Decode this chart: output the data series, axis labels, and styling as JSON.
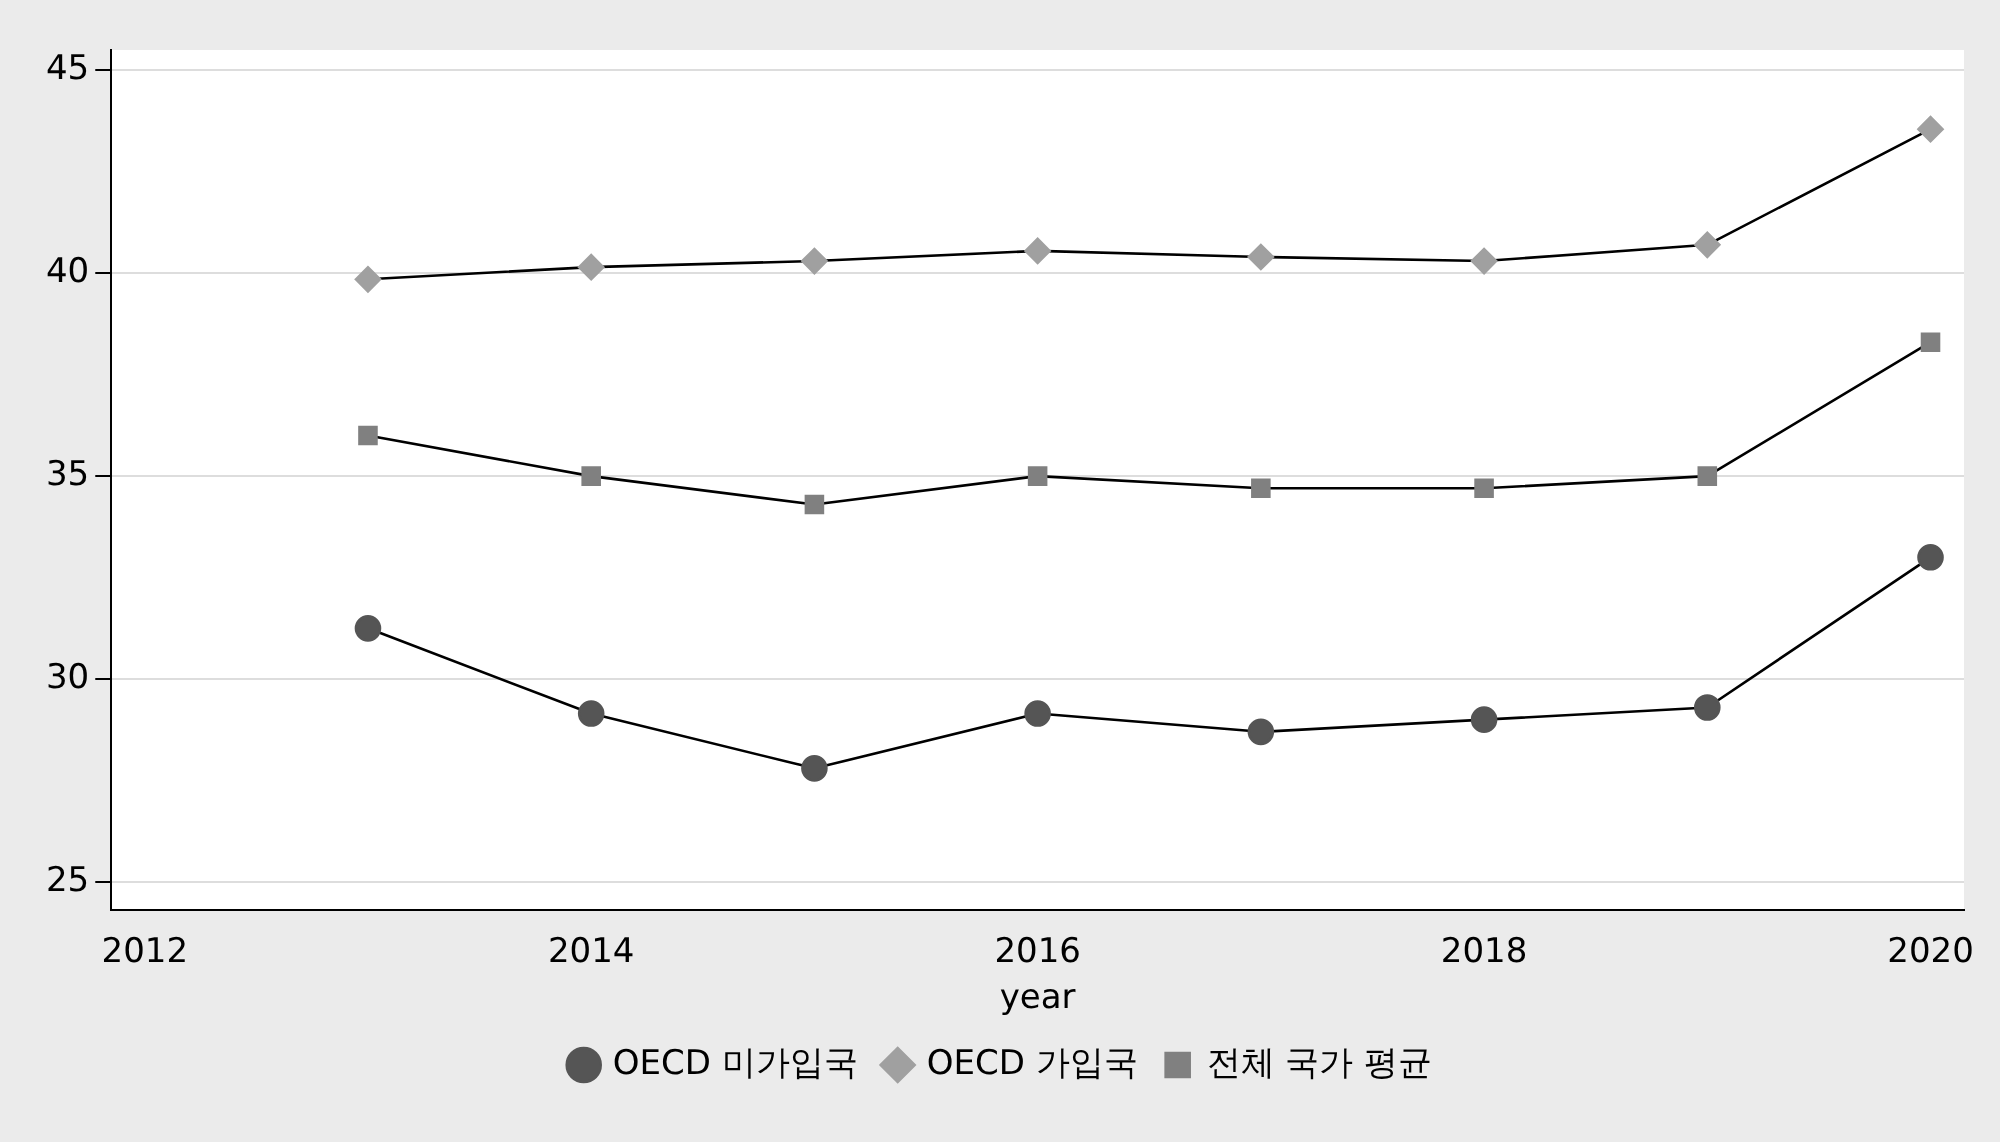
{
  "chart_data": {
    "type": "line",
    "xlabel": "year",
    "x": [
      2013,
      2014,
      2015,
      2016,
      2017,
      2018,
      2019,
      2020
    ],
    "series": [
      {
        "name": "OECD 미가입국",
        "color": "#555555",
        "marker": "circle",
        "values": [
          31.25,
          29.15,
          27.8,
          29.15,
          28.7,
          29.0,
          29.3,
          33.0
        ]
      },
      {
        "name": "OECD 가입국",
        "color": "#a0a0a0",
        "marker": "diamond",
        "values": [
          39.85,
          40.15,
          40.3,
          40.55,
          40.4,
          40.3,
          40.7,
          43.55
        ]
      },
      {
        "name": "전체 국가 평균",
        "color": "#808080",
        "marker": "square",
        "values": [
          36.0,
          35.0,
          34.3,
          35.0,
          34.7,
          34.7,
          35.0,
          38.3
        ]
      }
    ],
    "xlim": [
      2011.85,
      2020.15
    ],
    "xticks": [
      2012,
      2014,
      2016,
      2018,
      2020
    ],
    "ylim": [
      24.3,
      45.5
    ],
    "yticks": [
      25,
      30,
      35,
      40,
      45
    ],
    "grid": "y",
    "legend": "bottom",
    "line_style": "solid"
  }
}
